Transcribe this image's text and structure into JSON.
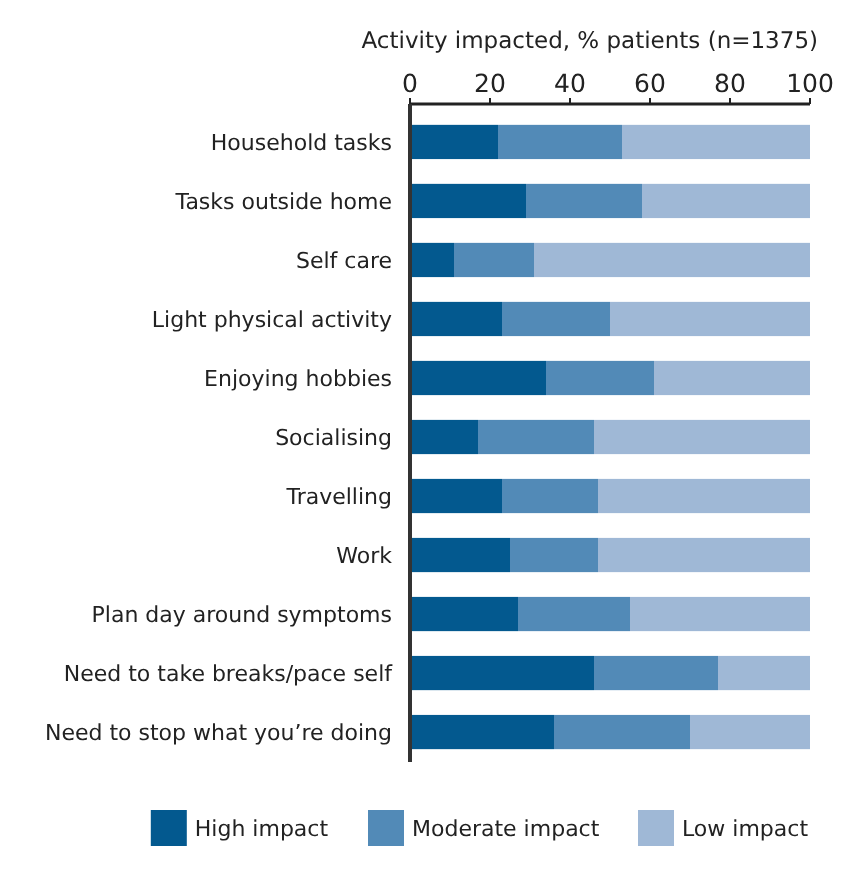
{
  "chart_data": {
    "type": "bar",
    "orientation": "horizontal",
    "stacked": true,
    "xlabel": "Activity impacted, % patients (n=1375)",
    "categories": [
      "Household tasks",
      "Tasks outside home",
      "Self care",
      "Light physical activity",
      "Enjoying hobbies",
      "Socialising",
      "Travelling",
      "Work",
      "Plan day around symptoms",
      "Need to take breaks/pace self",
      "Need to stop what you’re doing"
    ],
    "series": [
      {
        "name": "High impact",
        "color": "#03598f",
        "values": [
          22,
          29,
          11,
          23,
          34,
          17,
          23,
          25,
          27,
          46,
          36
        ]
      },
      {
        "name": "Moderate impact",
        "color": "#528ab7",
        "values": [
          31,
          29,
          20,
          27,
          27,
          29,
          24,
          22,
          28,
          31,
          34
        ]
      },
      {
        "name": "Low impact",
        "color": "#9fb8d6",
        "values": [
          47,
          42,
          69,
          50,
          39,
          54,
          53,
          53,
          45,
          23,
          30
        ]
      }
    ],
    "xlim": [
      0,
      100
    ],
    "xticks": [
      0,
      20,
      40,
      60,
      80,
      100
    ],
    "grid": false,
    "legend": "bottom"
  }
}
